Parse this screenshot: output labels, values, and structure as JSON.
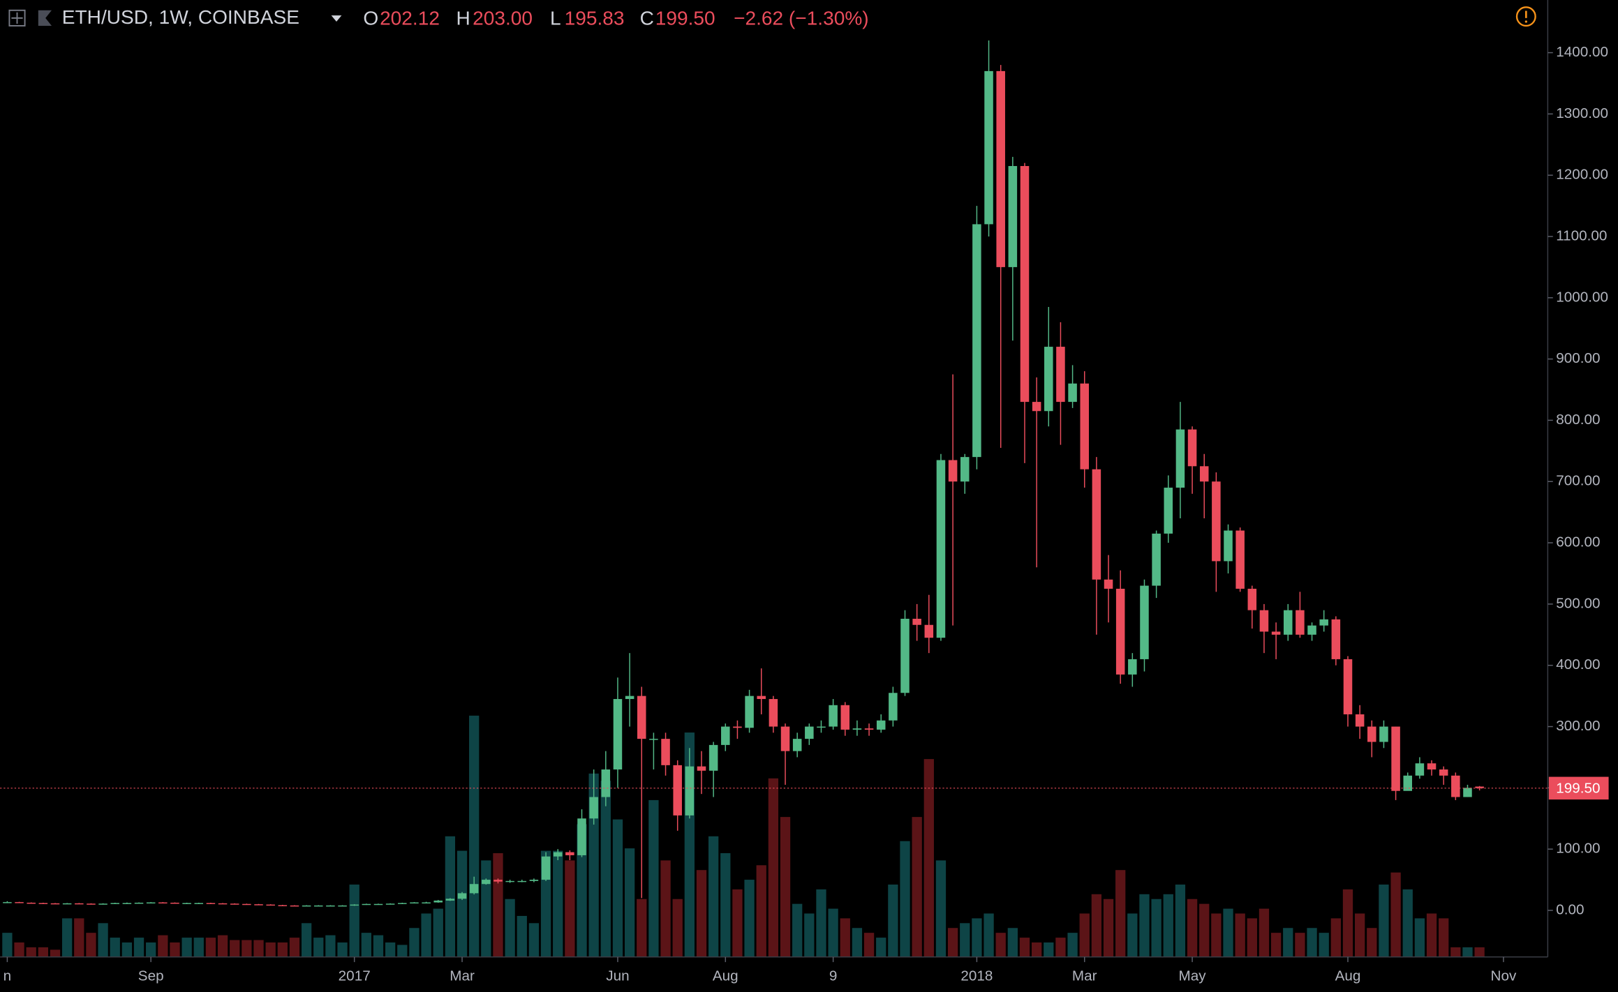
{
  "header": {
    "symbol": "ETH/USD, 1W, COINBASE",
    "o": "O",
    "open": "202.12",
    "h": "H",
    "high": "203.00",
    "l": "L",
    "low": "195.83",
    "c": "C",
    "close": "199.50",
    "change": "−2.62 (−1.30%)"
  },
  "chart_data": {
    "type": "candlestick",
    "open": [
      13,
      13.5,
      12.5,
      12,
      11.5,
      11,
      11.5,
      11,
      10.5,
      11,
      12,
      12,
      12.5,
      13,
      12.5,
      12,
      12,
      12,
      11.5,
      11,
      10.5,
      10,
      9.5,
      8.5,
      8,
      7.5,
      8,
      8,
      8,
      8,
      9.5,
      10.5,
      10.5,
      11,
      12,
      13,
      13,
      16,
      19,
      28,
      43,
      50,
      47,
      48,
      48,
      50,
      88,
      95,
      90,
      150,
      185,
      230,
      345,
      350,
      280,
      280,
      237,
      155,
      235,
      228,
      270,
      300,
      298,
      350,
      345,
      300,
      260,
      280,
      300,
      300,
      335,
      295,
      297,
      295,
      310,
      355,
      476,
      466,
      445,
      735,
      700,
      740,
      1120,
      1370,
      1050,
      1215,
      830,
      815,
      920,
      830,
      860,
      720,
      540,
      525,
      385,
      410,
      530,
      615,
      690,
      785,
      725,
      700,
      570,
      620,
      525,
      490,
      455,
      450,
      490,
      450,
      465,
      475,
      410,
      320,
      300,
      275,
      300,
      195,
      220,
      240,
      230,
      220,
      185,
      202.12
    ],
    "high": [
      15,
      14,
      13,
      12.5,
      12,
      12,
      12,
      11.5,
      11.5,
      12.5,
      12.8,
      13,
      13.5,
      13.5,
      13,
      12.5,
      12.5,
      12.5,
      12,
      11.5,
      11,
      10.5,
      10,
      9,
      8.5,
      8.5,
      8.5,
      8.5,
      8.5,
      10,
      11,
      11,
      11.5,
      12.5,
      13.5,
      14,
      17,
      20,
      30,
      55,
      52,
      52,
      50,
      50,
      52,
      95,
      100,
      98,
      165,
      230,
      260,
      380,
      420,
      365,
      290,
      290,
      245,
      265,
      260,
      275,
      305,
      310,
      360,
      395,
      350,
      305,
      290,
      305,
      310,
      345,
      340,
      310,
      305,
      320,
      365,
      490,
      500,
      515,
      745,
      875,
      745,
      1150,
      1420,
      1380,
      1230,
      1220,
      870,
      985,
      960,
      890,
      880,
      740,
      580,
      555,
      420,
      540,
      620,
      710,
      830,
      790,
      745,
      715,
      630,
      625,
      530,
      500,
      470,
      500,
      520,
      470,
      490,
      480,
      415,
      335,
      310,
      310,
      300,
      225,
      250,
      245,
      235,
      225,
      205,
      203
    ],
    "low": [
      12.5,
      12,
      11.5,
      11,
      10.5,
      10.5,
      10.5,
      10,
      10,
      10.5,
      11.5,
      11.5,
      12,
      12,
      11.5,
      11.5,
      11.5,
      11,
      10.5,
      10,
      9.5,
      9,
      8,
      7.5,
      7,
      7,
      7.5,
      7.5,
      7.5,
      7.5,
      9,
      10,
      10,
      10.5,
      11.5,
      12.5,
      12.5,
      15.5,
      17,
      26,
      42,
      44,
      45,
      46,
      46,
      48,
      82,
      82,
      87,
      140,
      170,
      200,
      300,
      20,
      230,
      220,
      130,
      150,
      190,
      185,
      260,
      280,
      290,
      320,
      290,
      205,
      250,
      270,
      290,
      295,
      285,
      285,
      285,
      290,
      300,
      350,
      440,
      420,
      440,
      465,
      680,
      720,
      1100,
      755,
      930,
      730,
      560,
      790,
      760,
      820,
      690,
      450,
      470,
      370,
      365,
      390,
      510,
      600,
      640,
      680,
      640,
      520,
      550,
      520,
      460,
      420,
      410,
      440,
      445,
      440,
      455,
      400,
      300,
      280,
      250,
      265,
      180,
      200,
      215,
      220,
      205,
      180,
      185,
      195.83
    ],
    "close": [
      13.5,
      12.5,
      12,
      11.5,
      11,
      11.5,
      11,
      10.5,
      11,
      12,
      12,
      12.5,
      13,
      12.5,
      12,
      12,
      12,
      11.5,
      11,
      10.5,
      10,
      9.5,
      8.5,
      8,
      7.5,
      8,
      8,
      8,
      8,
      9.5,
      10.5,
      10.5,
      11,
      12,
      13,
      13,
      16,
      19,
      28,
      43,
      50,
      47,
      48,
      48,
      50,
      88,
      95,
      90,
      150,
      185,
      230,
      345,
      350,
      280,
      280,
      237,
      155,
      235,
      228,
      270,
      300,
      298,
      350,
      345,
      300,
      260,
      280,
      300,
      300,
      335,
      295,
      297,
      295,
      310,
      355,
      476,
      466,
      445,
      735,
      700,
      740,
      1120,
      1370,
      1050,
      1215,
      830,
      815,
      920,
      830,
      860,
      720,
      540,
      525,
      385,
      410,
      530,
      615,
      690,
      785,
      725,
      700,
      570,
      620,
      525,
      490,
      455,
      450,
      490,
      450,
      465,
      475,
      410,
      320,
      300,
      275,
      300,
      195,
      220,
      240,
      230,
      220,
      185,
      200,
      199.5
    ],
    "volume": [
      10,
      6,
      4,
      4,
      3,
      16,
      16,
      10,
      14,
      8,
      6,
      8,
      6,
      9,
      6,
      8,
      8,
      8,
      9,
      7,
      7,
      7,
      6,
      6,
      8,
      14,
      8,
      9,
      6,
      30,
      10,
      9,
      6,
      5,
      12,
      18,
      20,
      50,
      44,
      100,
      40,
      43,
      24,
      17,
      14,
      44,
      44,
      40,
      55,
      76,
      73,
      57,
      45,
      24,
      65,
      40,
      24,
      93,
      36,
      50,
      43,
      28,
      32,
      38,
      74,
      58,
      22,
      18,
      28,
      20,
      16,
      12,
      10,
      8,
      30,
      48,
      58,
      82,
      40,
      12,
      14,
      16,
      18,
      10,
      12,
      8,
      6,
      6,
      8,
      10,
      18,
      26,
      24,
      36,
      18,
      26,
      24,
      26,
      30,
      24,
      22,
      18,
      20,
      18,
      16,
      20,
      10,
      12,
      10,
      12,
      10,
      16,
      28,
      18,
      12,
      30,
      35,
      28,
      16,
      18,
      16,
      4,
      4,
      4
    ],
    "last_value_label": "199.50",
    "up_color": "#53b987",
    "down_color": "#eb4d5c",
    "volume_up_color": "#0e4446",
    "volume_down_color": "#5b1417",
    "xlim": [
      -0.6,
      128.7
    ],
    "xticks": [
      {
        "value": 0,
        "label": "n"
      },
      {
        "value": 12,
        "label": "Sep"
      },
      {
        "value": 29,
        "label": "2017"
      },
      {
        "value": 38,
        "label": "Mar"
      },
      {
        "value": 51,
        "label": "Jun"
      },
      {
        "value": 60,
        "label": "Aug"
      },
      {
        "value": 69,
        "label": "9"
      },
      {
        "value": 81,
        "label": "2018"
      },
      {
        "value": 90,
        "label": "Mar"
      },
      {
        "value": 99,
        "label": "May"
      },
      {
        "value": 112,
        "label": "Aug"
      },
      {
        "value": 125,
        "label": "Nov"
      }
    ],
    "ylim": [
      -76,
      1486
    ],
    "yticks": [
      {
        "value": 0,
        "label": "0.00"
      },
      {
        "value": 100,
        "label": "100.00"
      },
      {
        "value": 200,
        "label": "200.00"
      },
      {
        "value": 300,
        "label": "300.00"
      },
      {
        "value": 400,
        "label": "400.00"
      },
      {
        "value": 500,
        "label": "500.00"
      },
      {
        "value": 600,
        "label": "600.00"
      },
      {
        "value": 700,
        "label": "700.00"
      },
      {
        "value": 800,
        "label": "800.00"
      },
      {
        "value": 900,
        "label": "900.00"
      },
      {
        "value": 1000,
        "label": "1000.00"
      },
      {
        "value": 1100,
        "label": "1100.00"
      },
      {
        "value": 1200,
        "label": "1200.00"
      },
      {
        "value": 1300,
        "label": "1300.00"
      },
      {
        "value": 1400,
        "label": "1400.00"
      }
    ],
    "grid": false
  }
}
